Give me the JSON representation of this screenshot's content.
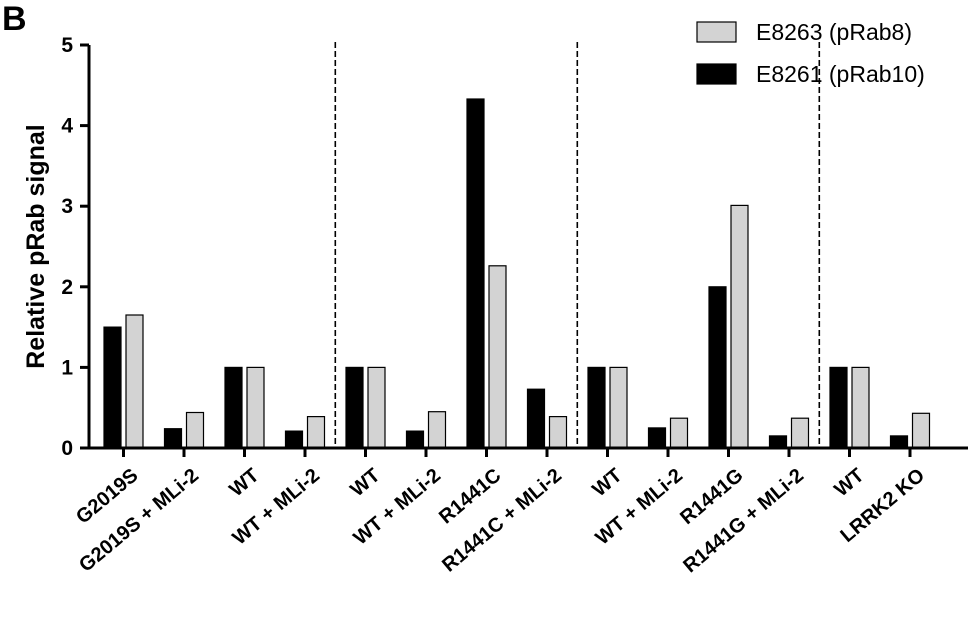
{
  "panel_label": "B",
  "chart_data": {
    "type": "bar",
    "title": "",
    "xlabel": "",
    "ylabel": "Relative pRab signal",
    "ylim": [
      0,
      5
    ],
    "yticks": [
      "0",
      "1",
      "2",
      "3",
      "4",
      "5"
    ],
    "grid": false,
    "legend_position": "top-right",
    "categories": [
      "G2019S",
      "G2019S + MLi-2",
      "WT",
      "WT + MLi-2",
      "WT",
      "WT + MLi-2",
      "R1441C",
      "R1441C + MLi-2",
      "WT",
      "WT + MLi-2",
      "R1441G",
      "R1441G + MLi-2",
      "WT",
      "LRRK2 KO"
    ],
    "series": [
      {
        "name": "E8261 (pRab10)",
        "color": "#000000",
        "values": [
          1.5,
          0.24,
          1.0,
          0.21,
          1.0,
          0.21,
          4.33,
          0.73,
          1.0,
          0.25,
          2.0,
          0.15,
          1.0,
          0.15
        ]
      },
      {
        "name": "E8263 (pRab8)",
        "color": "#d3d3d3",
        "values": [
          1.65,
          0.44,
          1.0,
          0.39,
          1.0,
          0.45,
          2.26,
          0.39,
          1.0,
          0.37,
          3.01,
          0.37,
          1.0,
          0.43
        ]
      }
    ],
    "legend": [
      "E8263 (pRab8)",
      "E8261 (pRab10)"
    ],
    "separators_after_category": [
      3,
      7,
      11
    ]
  }
}
